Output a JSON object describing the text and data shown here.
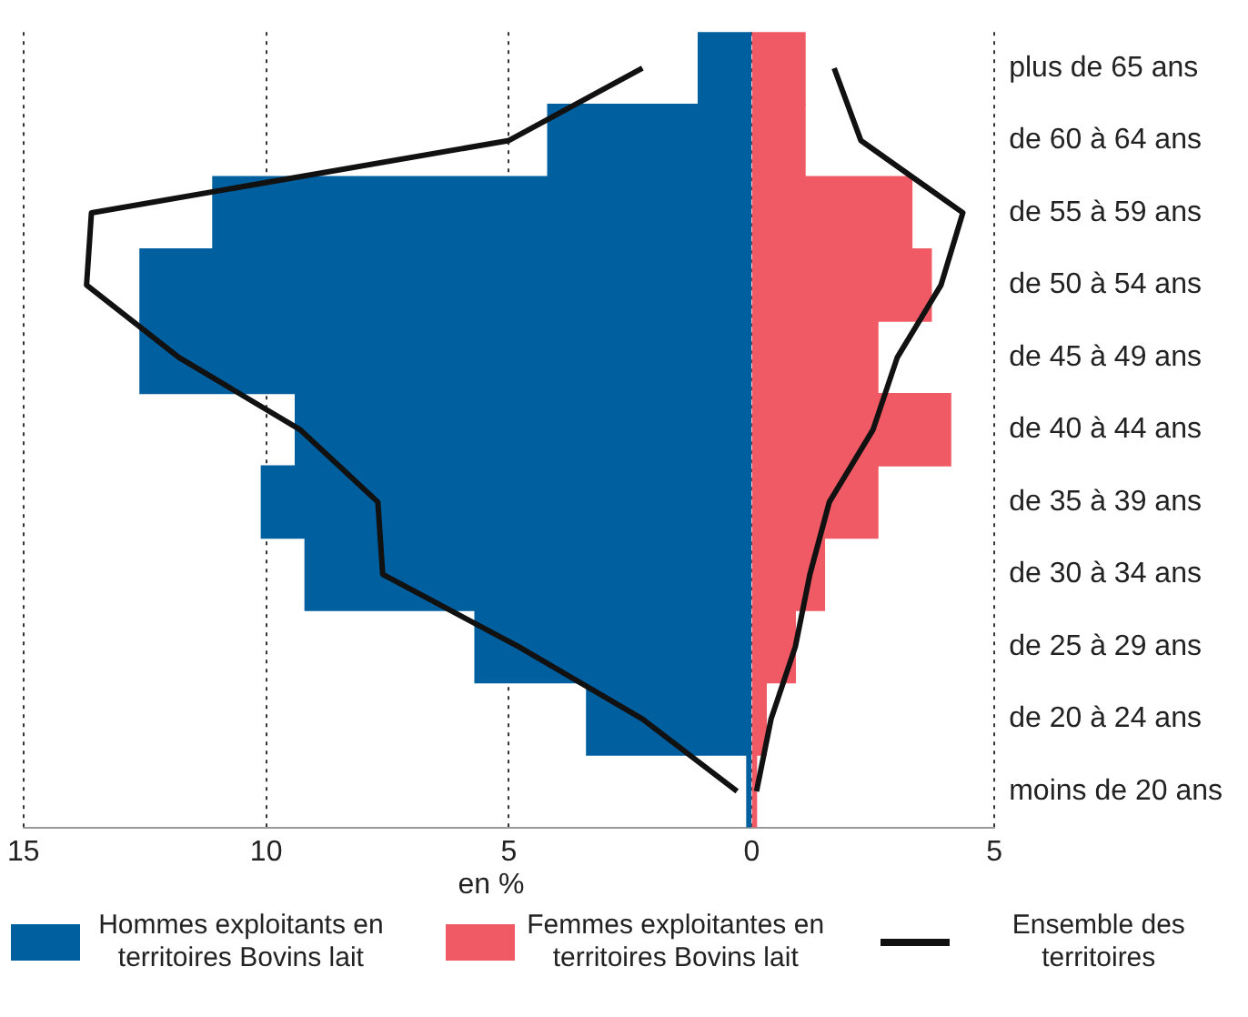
{
  "chart_data": {
    "type": "bar",
    "orientation": "horizontal",
    "stacked": true,
    "xlabel": "en %",
    "categories": [
      "plus de 65 ans",
      "de 60 à 64 ans",
      "de 55 à 59 ans",
      "de 50 à 54 ans",
      "de 45 à 49 ans",
      "de 40 à 44 ans",
      "de 35 à 39 ans",
      "de 30 à 34 ans",
      "de 25 à 29 ans",
      "de 20 à 24 ans",
      "moins de 20 ans"
    ],
    "series": [
      {
        "name": "Hommes exploitants en territoires Bovins lait",
        "color": "#005f9e",
        "values": [
          -1.1,
          -4.2,
          -11.1,
          -12.6,
          -12.6,
          -9.4,
          -10.1,
          -9.2,
          -5.7,
          -3.4,
          -0.1
        ]
      },
      {
        "name": "Femmes exploitantes en territoires Bovins lait",
        "color": "#f05a64",
        "values": [
          1.1,
          1.1,
          3.3,
          3.7,
          2.6,
          4.1,
          2.6,
          1.5,
          0.9,
          0.3,
          0.1
        ]
      },
      {
        "name": "Ensemble des territoires",
        "type": "line",
        "color": "#111111",
        "values": [
          -2.25,
          -5.0,
          -13.6,
          -13.7,
          -11.8,
          -9.3,
          -7.7,
          -7.6,
          -4.8,
          -2.25,
          -0.3
        ]
      },
      {
        "type": "line",
        "color": "#111111",
        "values": [
          1.7,
          2.25,
          4.35,
          3.9,
          3.0,
          2.5,
          1.6,
          1.2,
          0.9,
          0.4,
          0.1
        ]
      }
    ],
    "xlim": [
      -15,
      5
    ],
    "xticks": [
      {
        "value": -15,
        "label": "15"
      },
      {
        "value": -10,
        "label": "10"
      },
      {
        "value": -5,
        "label": "5"
      },
      0,
      5
    ],
    "grid": "x",
    "line_style": "solid",
    "marker": "none",
    "legend": "bottom"
  }
}
